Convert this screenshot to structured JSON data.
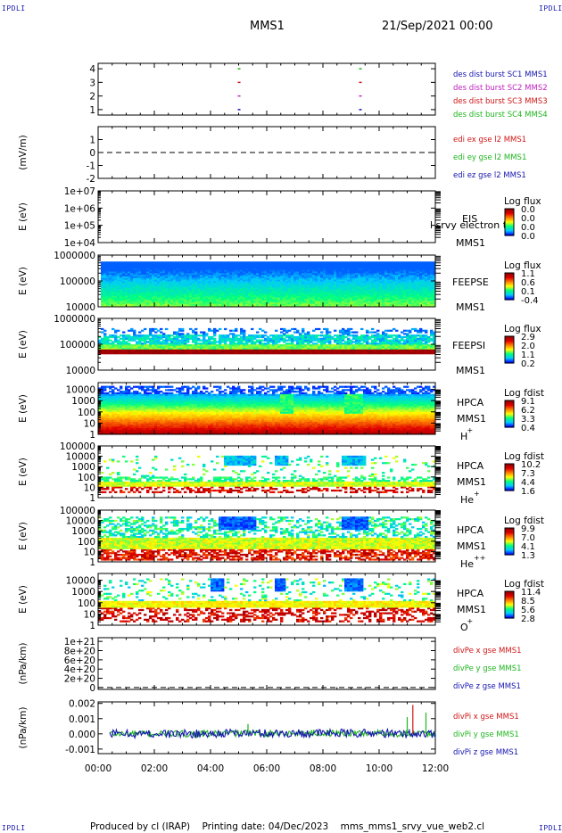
{
  "header": {
    "corner_label": "IPDLI",
    "title": "MMS1",
    "datetime": "21/Sep/2021 00:00"
  },
  "footer": {
    "text": "Produced by cl (IRAP)    Printing date: 04/Dec/2023    mms_mms1_srvy_vue_web2.cl"
  },
  "x_axis": {
    "range": [
      "00:00",
      "12:00"
    ],
    "tick_labels": [
      "00:00",
      "02:00",
      "04:00",
      "06:00",
      "08:00",
      "10:00",
      "12:00"
    ]
  },
  "colors": {
    "axis": "#000000",
    "label_blue": "#1515b0",
    "label_red": "#d01515",
    "label_green": "#1fb51f",
    "label_magenta": "#c020c0",
    "colormap": [
      "#0000ff",
      "#00c8ff",
      "#00ff80",
      "#ffff00",
      "#ff8000",
      "#e00000",
      "#900000"
    ]
  },
  "chart_data": [
    {
      "id": "burst",
      "type": "scatter",
      "yticks": [
        "4",
        "3",
        "2",
        "1"
      ],
      "ylim": [
        0.6,
        4.4
      ],
      "series": [
        {
          "name": "des dist burst SC1 MMS1",
          "y": 1,
          "color": "#1515b0",
          "x": [
            "05:01",
            "09:20"
          ]
        },
        {
          "name": "des dist burst SC2 MMS2",
          "y": 2,
          "color": "#c020c0",
          "x": [
            "05:01",
            "09:20"
          ]
        },
        {
          "name": "des dist burst SC3 MMS3",
          "y": 3,
          "color": "#d01515",
          "x": [
            "05:01",
            "09:20"
          ]
        },
        {
          "name": "des dist burst SC4 MMS4",
          "y": 4,
          "color": "#1fb51f",
          "x": [
            "05:01",
            "09:20"
          ]
        }
      ]
    },
    {
      "id": "efield",
      "type": "line",
      "ylabel": "(mV/m)",
      "yticks": [
        "1",
        "0",
        "-1",
        "-2"
      ],
      "ylim": [
        -2,
        2
      ],
      "series": [
        {
          "name": "edi ex gse l2 MMS1",
          "color": "#d01515"
        },
        {
          "name": "edi ey gse l2 MMS1",
          "color": "#1fb51f"
        },
        {
          "name": "edi ez gse l2 MMS1",
          "color": "#1515b0"
        }
      ],
      "zero_line": 0
    },
    {
      "id": "eis",
      "type": "heatmap",
      "ylabel": "E (eV)",
      "yticks": [
        "1e+07",
        "1e+06",
        "1e+05",
        "1e+04"
      ],
      "ylim": [
        10000,
        10000000
      ],
      "instrument_label": "EIS",
      "species_label": "l srvy electron to",
      "spacecraft_label": "MMS1",
      "colorbar_title": "Log flux",
      "colorbar_ticks": [
        "0.0",
        "0.0",
        "0.0",
        "0.0"
      ],
      "empty": true
    },
    {
      "id": "feepse",
      "type": "heatmap",
      "ylabel": "E (eV)",
      "yticks": [
        "1000000",
        "100000",
        "10000"
      ],
      "ylim": [
        10000,
        1000000
      ],
      "instrument_label": "FEEPSE",
      "spacecraft_label": "MMS1",
      "colorbar_title": "Log flux",
      "colorbar_ticks": [
        "1.1",
        "0.6",
        "0.1",
        "-0.4"
      ]
    },
    {
      "id": "feepsi",
      "type": "heatmap",
      "ylabel": "E (eV)",
      "yticks": [
        "1000000",
        "100000",
        "10000"
      ],
      "ylim": [
        10000,
        1000000
      ],
      "instrument_label": "FEEPSI",
      "spacecraft_label": "MMS1",
      "colorbar_title": "Log flux",
      "colorbar_ticks": [
        "2.9",
        "2.0",
        "1.1",
        "0.2"
      ]
    },
    {
      "id": "hpca_h",
      "type": "heatmap",
      "ylabel": "E (eV)",
      "yticks": [
        "10000",
        "1000",
        "100",
        "10",
        "1"
      ],
      "ylim": [
        1,
        40000
      ],
      "instrument_label": "HPCA",
      "spacecraft_label": "MMS1",
      "species_label": "H",
      "species_charge": "+",
      "colorbar_title": "Log fdist",
      "colorbar_ticks": [
        "9.1",
        "6.2",
        "3.3",
        "0.4"
      ]
    },
    {
      "id": "hpca_he1",
      "type": "heatmap",
      "ylabel": "E (eV)",
      "yticks": [
        "100000",
        "10000",
        "1000",
        "100",
        "10",
        "1"
      ],
      "ylim": [
        1,
        100000
      ],
      "instrument_label": "HPCA",
      "spacecraft_label": "MMS1",
      "species_label": "He",
      "species_charge": "+",
      "colorbar_title": "Log fdist",
      "colorbar_ticks": [
        "10.2",
        "7.3",
        "4.4",
        "1.6"
      ]
    },
    {
      "id": "hpca_he2",
      "type": "heatmap",
      "ylabel": "E (eV)",
      "yticks": [
        "100000",
        "10000",
        "1000",
        "100",
        "10",
        "1"
      ],
      "ylim": [
        1,
        100000
      ],
      "instrument_label": "HPCA",
      "spacecraft_label": "MMS1",
      "species_label": "He",
      "species_charge": "++",
      "colorbar_title": "Log fdist",
      "colorbar_ticks": [
        "9.9",
        "7.0",
        "4.1",
        "1.3"
      ]
    },
    {
      "id": "hpca_o",
      "type": "heatmap",
      "ylabel": "E (eV)",
      "yticks": [
        "10000",
        "1000",
        "100",
        "10",
        "1"
      ],
      "ylim": [
        1,
        40000
      ],
      "instrument_label": "HPCA",
      "spacecraft_label": "MMS1",
      "species_label": "O",
      "species_charge": "+",
      "colorbar_title": "Log fdist",
      "colorbar_ticks": [
        "11.4",
        "8.5",
        "5.6",
        "2.8"
      ]
    },
    {
      "id": "divpe",
      "type": "line",
      "ylabel": "(nPa/km)",
      "yticks": [
        "1e+21",
        "8e+20",
        "6e+20",
        "4e+20",
        "2e+20",
        "0"
      ],
      "ylim": [
        -4e+19,
        1.08e+21
      ],
      "series": [
        {
          "name": "divPe x gse MMS1",
          "color": "#d01515"
        },
        {
          "name": "divPe y gse MMS1",
          "color": "#1fb51f"
        },
        {
          "name": "divPe z gse MMS1",
          "color": "#1515b0"
        }
      ],
      "zero_line": 0
    },
    {
      "id": "divpi",
      "type": "line",
      "ylabel": "(nPa/km)",
      "yticks": [
        "0.002",
        "0.001",
        "0.000",
        "-0.001"
      ],
      "ylim": [
        -0.0013,
        0.0021
      ],
      "series": [
        {
          "name": "divPi x gse MMS1",
          "color": "#d01515"
        },
        {
          "name": "divPi y gse MMS1",
          "color": "#1fb51f"
        },
        {
          "name": "divPi z gse MMS1",
          "color": "#1515b0"
        }
      ],
      "spikes": [
        {
          "x": "05:20",
          "y": 0.00065,
          "color": "#1fb51f"
        },
        {
          "x": "11:12",
          "y": 0.0019,
          "color": "#d01515"
        },
        {
          "x": "11:00",
          "y": 0.0011,
          "color": "#1fb51f"
        },
        {
          "x": "11:40",
          "y": 0.0014,
          "color": "#1fb51f"
        }
      ]
    }
  ]
}
